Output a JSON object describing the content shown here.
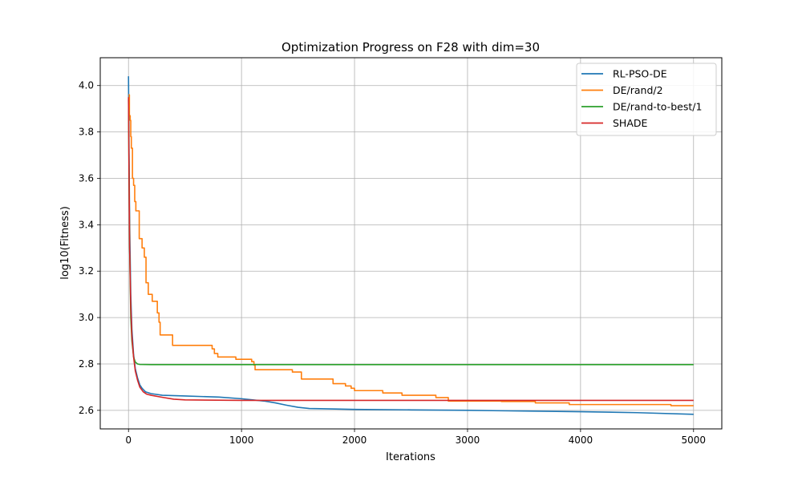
{
  "chart_data": {
    "type": "line",
    "title": "Optimization Progress on F28 with dim=30",
    "xlabel": "Iterations",
    "ylabel": "log10(Fitness)",
    "xlim": [
      -250,
      5250
    ],
    "ylim": [
      2.52,
      4.12
    ],
    "xticks": [
      0,
      1000,
      2000,
      3000,
      4000,
      5000
    ],
    "yticks": [
      2.6,
      2.8,
      3.0,
      3.2,
      3.4,
      3.6,
      3.8,
      4.0
    ],
    "xtick_labels": [
      "0",
      "1000",
      "2000",
      "3000",
      "4000",
      "5000"
    ],
    "ytick_labels": [
      "2.6",
      "2.8",
      "3.0",
      "3.2",
      "3.4",
      "3.6",
      "3.8",
      "4.0"
    ],
    "grid": true,
    "legend_position": "top-right",
    "series": [
      {
        "name": "RL-PSO-DE",
        "color": "#1f77b4",
        "step": false,
        "points": [
          [
            0,
            4.04
          ],
          [
            5,
            3.7
          ],
          [
            10,
            3.4
          ],
          [
            20,
            3.1
          ],
          [
            30,
            2.95
          ],
          [
            45,
            2.84
          ],
          [
            60,
            2.78
          ],
          [
            80,
            2.74
          ],
          [
            100,
            2.71
          ],
          [
            120,
            2.695
          ],
          [
            150,
            2.68
          ],
          [
            200,
            2.672
          ],
          [
            300,
            2.665
          ],
          [
            500,
            2.662
          ],
          [
            800,
            2.657
          ],
          [
            1000,
            2.65
          ],
          [
            1100,
            2.645
          ],
          [
            1200,
            2.64
          ],
          [
            1300,
            2.632
          ],
          [
            1400,
            2.622
          ],
          [
            1500,
            2.613
          ],
          [
            1600,
            2.608
          ],
          [
            1700,
            2.607
          ],
          [
            2000,
            2.604
          ],
          [
            2500,
            2.602
          ],
          [
            3000,
            2.6
          ],
          [
            3500,
            2.597
          ],
          [
            4000,
            2.594
          ],
          [
            4500,
            2.59
          ],
          [
            5000,
            2.583
          ]
        ]
      },
      {
        "name": "DE/rand/2",
        "color": "#ff7f0e",
        "step": true,
        "points": [
          [
            0,
            3.96
          ],
          [
            8,
            3.87
          ],
          [
            15,
            3.85
          ],
          [
            20,
            3.78
          ],
          [
            25,
            3.73
          ],
          [
            35,
            3.6
          ],
          [
            45,
            3.57
          ],
          [
            55,
            3.5
          ],
          [
            65,
            3.46
          ],
          [
            80,
            3.46
          ],
          [
            95,
            3.34
          ],
          [
            110,
            3.34
          ],
          [
            120,
            3.3
          ],
          [
            140,
            3.26
          ],
          [
            155,
            3.15
          ],
          [
            175,
            3.1
          ],
          [
            200,
            3.1
          ],
          [
            210,
            3.07
          ],
          [
            240,
            3.07
          ],
          [
            255,
            3.02
          ],
          [
            270,
            2.98
          ],
          [
            280,
            2.925
          ],
          [
            380,
            2.925
          ],
          [
            390,
            2.88
          ],
          [
            720,
            2.88
          ],
          [
            740,
            2.865
          ],
          [
            760,
            2.845
          ],
          [
            790,
            2.83
          ],
          [
            950,
            2.82
          ],
          [
            1090,
            2.81
          ],
          [
            1110,
            2.795
          ],
          [
            1120,
            2.775
          ],
          [
            1450,
            2.765
          ],
          [
            1530,
            2.735
          ],
          [
            1810,
            2.715
          ],
          [
            1920,
            2.705
          ],
          [
            1970,
            2.695
          ],
          [
            2000,
            2.685
          ],
          [
            2250,
            2.675
          ],
          [
            2420,
            2.665
          ],
          [
            2720,
            2.655
          ],
          [
            2830,
            2.64
          ],
          [
            3300,
            2.638
          ],
          [
            3600,
            2.632
          ],
          [
            3900,
            2.625
          ],
          [
            4800,
            2.62
          ],
          [
            5000,
            2.62
          ]
        ]
      },
      {
        "name": "DE/rand-to-best/1",
        "color": "#2ca02c",
        "step": false,
        "points": [
          [
            0,
            3.94
          ],
          [
            5,
            3.6
          ],
          [
            10,
            3.3
          ],
          [
            20,
            3.0
          ],
          [
            30,
            2.9
          ],
          [
            45,
            2.83
          ],
          [
            60,
            2.808
          ],
          [
            80,
            2.8
          ],
          [
            100,
            2.798
          ],
          [
            200,
            2.797
          ],
          [
            5000,
            2.797
          ]
        ]
      },
      {
        "name": "SHADE",
        "color": "#d62728",
        "step": false,
        "points": [
          [
            0,
            3.95
          ],
          [
            5,
            3.6
          ],
          [
            10,
            3.3
          ],
          [
            20,
            3.05
          ],
          [
            30,
            2.92
          ],
          [
            45,
            2.83
          ],
          [
            60,
            2.77
          ],
          [
            80,
            2.73
          ],
          [
            100,
            2.7
          ],
          [
            130,
            2.68
          ],
          [
            160,
            2.67
          ],
          [
            200,
            2.665
          ],
          [
            300,
            2.656
          ],
          [
            400,
            2.648
          ],
          [
            500,
            2.645
          ],
          [
            1000,
            2.643
          ],
          [
            5000,
            2.643
          ]
        ]
      }
    ]
  }
}
